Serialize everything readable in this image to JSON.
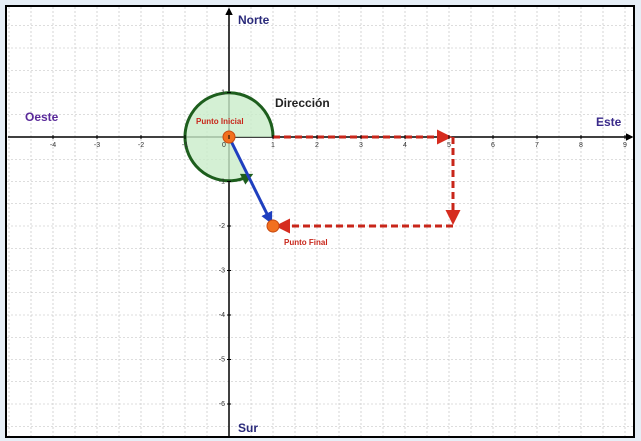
{
  "labels": {
    "north": "Norte",
    "south": "Sur",
    "west": "Oeste",
    "east": "Este",
    "direction": "Dirección",
    "start": "Punto Inicial",
    "end": "Punto Final"
  },
  "xticks": [
    -4,
    -3,
    -2,
    -1,
    0,
    1,
    2,
    3,
    4,
    5,
    6,
    7,
    8,
    9
  ],
  "yticks": [
    1,
    -1,
    -2,
    -3,
    -4,
    -5,
    -6
  ]
}
